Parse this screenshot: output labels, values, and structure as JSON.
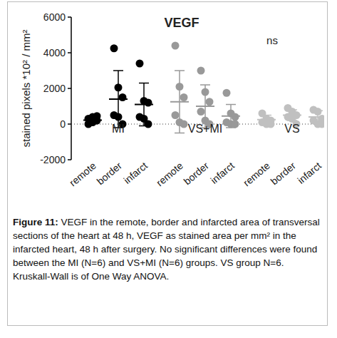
{
  "chart_data": {
    "type": "scatter",
    "title": "VEGF",
    "y_label": "stained pixels *10² / mm²",
    "annotation": "ns",
    "categories": [
      "remote",
      "border",
      "infarct"
    ],
    "series": [
      {
        "name": "MI",
        "color": "#000000",
        "marker": "circle",
        "values": [
          [
            0,
            100,
            200,
            300,
            400,
            450
          ],
          [
            4250,
            2050,
            1500,
            500,
            400,
            0
          ],
          [
            3400,
            1300,
            1200,
            400,
            300,
            0
          ]
        ],
        "mean": [
          220,
          1400,
          1100
        ],
        "sd": [
          200,
          1600,
          1200
        ]
      },
      {
        "name": "VS+MI",
        "color": "#999999",
        "marker": "circle",
        "values": [
          [
            4400,
            2100,
            1500,
            500,
            100,
            0
          ],
          [
            3000,
            1800,
            1250,
            700,
            200,
            0
          ],
          [
            1750,
            600,
            400,
            100,
            0,
            0
          ]
        ],
        "mean": [
          1250,
          1000,
          450
        ],
        "sd": [
          1750,
          1200,
          650
        ]
      },
      {
        "name": "VS",
        "color": "#c0c0c0",
        "marker": "circle",
        "values": [
          [
            600,
            300,
            200,
            100,
            0,
            0
          ],
          [
            900,
            700,
            500,
            400,
            300,
            0
          ],
          [
            800,
            700,
            300,
            200,
            0,
            0
          ]
        ],
        "mean": [
          250,
          500,
          400
        ],
        "sd": [
          250,
          300,
          350
        ]
      }
    ],
    "ylim": [
      -2000,
      6000
    ],
    "yticks": [
      -2000,
      0,
      2000,
      4000,
      6000
    ],
    "grid": false,
    "caption_label": "Figure 11:",
    "caption": "VEGF in the remote, border and infarcted area of transversal sections of the heart at 48 h, VEGF as stained area per mm² in the infarcted heart, 48 h after surgery. No significant differences were found between the MI (N=6) and VS+MI (N=6) groups. VS group N=6. Kruskall-Wall is of One Way ANOVA."
  }
}
